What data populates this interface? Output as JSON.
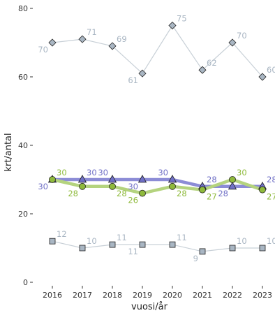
{
  "chart_data": {
    "type": "line",
    "title": "",
    "xlabel": "vuosi/år",
    "ylabel": "krt/antal",
    "x": [
      2016,
      2017,
      2018,
      2019,
      2020,
      2021,
      2022,
      2023
    ],
    "ylim": [
      0,
      80
    ],
    "yticks": [
      0,
      20,
      40,
      60,
      80
    ],
    "grid": false,
    "legend": "none",
    "series": [
      {
        "marker": "diamond",
        "color": "#a9b6c3",
        "line_color": "#c8d0d7",
        "values": [
          70,
          71,
          69,
          61,
          75,
          62,
          70,
          60
        ],
        "label_pos": [
          "below-left",
          "above-right",
          "above-right",
          "below-left",
          "above-right",
          "above-right",
          "above-right",
          "above-right"
        ]
      },
      {
        "marker": "triangle",
        "color": "#6f6fc6",
        "line_color": "#8c8cd6",
        "values": [
          30,
          30,
          30,
          30,
          30,
          28,
          28,
          28
        ],
        "label_pos": [
          "below-left",
          "above-right",
          "above-left",
          "below-left",
          "above-left",
          "above-right",
          "below-left",
          "above-right"
        ]
      },
      {
        "marker": "circle",
        "color": "#8fba3c",
        "line_color": "#b4d37e",
        "values": [
          30,
          28,
          28,
          26,
          28,
          27,
          30,
          27
        ],
        "label_pos": [
          "above-right",
          "below-left",
          "below-right",
          "below-left",
          "below-right",
          "below-right",
          "above-right",
          "below-right"
        ]
      },
      {
        "marker": "square",
        "color": "#a9b6c3",
        "line_color": "#c8d0d7",
        "values": [
          12,
          10,
          11,
          11,
          11,
          9,
          10,
          10
        ],
        "label_pos": [
          "above-right",
          "above-right",
          "above-right",
          "below-left",
          "above-right",
          "below-left",
          "above-right",
          "above-right"
        ]
      }
    ]
  }
}
